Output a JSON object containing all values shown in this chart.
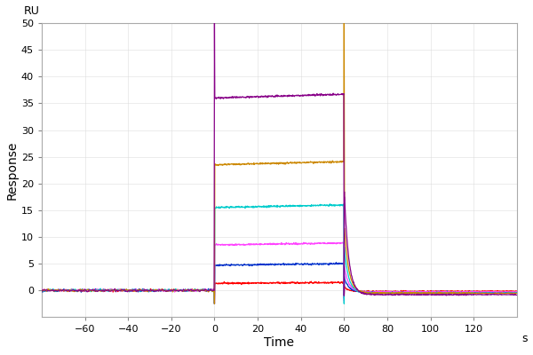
{
  "title": "",
  "xlabel": "Time",
  "ylabel": "Response",
  "x_unit": "s",
  "y_unit": "RU",
  "xlim": [
    -80,
    140
  ],
  "ylim": [
    -5,
    50
  ],
  "xticks": [
    -60,
    -40,
    -20,
    0,
    20,
    40,
    60,
    80,
    100,
    120
  ],
  "yticks": [
    0,
    5,
    10,
    15,
    20,
    25,
    30,
    35,
    40,
    45,
    50
  ],
  "baseline_start": -80,
  "baseline_end": 0,
  "assoc_start": 0,
  "assoc_end": 60,
  "dissoc_start": 60,
  "dissoc_end": 120,
  "curves": [
    {
      "color": "#FF0000",
      "assoc_level": 1.3,
      "assoc_slope": 0.003,
      "dissoc_fast_tau": 2.0,
      "dissoc_final": -0.2,
      "spike_assoc": -2.5,
      "spike_dissoc": -1.0,
      "has_dissoc_spike": false
    },
    {
      "color": "#0033CC",
      "assoc_level": 4.7,
      "assoc_slope": 0.005,
      "dissoc_fast_tau": 2.0,
      "dissoc_final": -0.3,
      "spike_assoc": -2.5,
      "spike_dissoc": -1.5,
      "has_dissoc_spike": false
    },
    {
      "color": "#FF44FF",
      "assoc_level": 8.5,
      "assoc_slope": 0.006,
      "dissoc_fast_tau": 2.0,
      "dissoc_final": -0.3,
      "spike_assoc": -2.5,
      "spike_dissoc": -2.0,
      "has_dissoc_spike": false
    },
    {
      "color": "#00CCCC",
      "assoc_level": 15.5,
      "assoc_slope": 0.008,
      "dissoc_fast_tau": 2.0,
      "dissoc_final": -0.5,
      "spike_assoc": -2.5,
      "spike_dissoc": -2.5,
      "has_dissoc_spike": false
    },
    {
      "color": "#CC8800",
      "assoc_level": 23.5,
      "assoc_slope": 0.01,
      "dissoc_fast_tau": 2.0,
      "dissoc_final": -0.5,
      "spike_assoc": -2.5,
      "spike_dissoc": 50,
      "has_dissoc_spike": true
    },
    {
      "color": "#880088",
      "assoc_level": 36.0,
      "assoc_slope": 0.012,
      "dissoc_fast_tau": 2.0,
      "dissoc_final": -0.8,
      "spike_assoc": 50,
      "spike_dissoc": -1.0,
      "has_dissoc_spike": false
    }
  ],
  "noise_amplitude": 0.15,
  "background_color": "#ffffff",
  "grid_color": "#dddddd"
}
